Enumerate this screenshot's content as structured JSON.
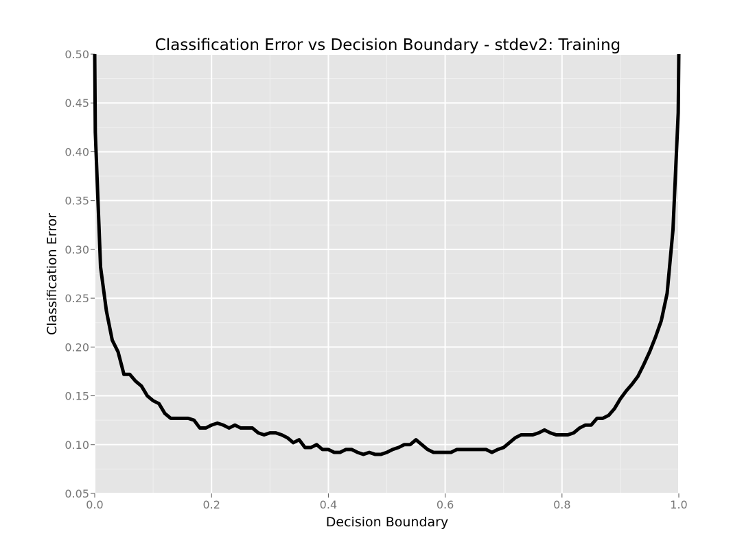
{
  "colors": {
    "panel_background": "#e5e5e5",
    "major_grid": "#ffffff",
    "minor_grid": "#f0f0f0",
    "line": "#000000",
    "tick_label": "#777777",
    "text": "#000000"
  },
  "chart_data": {
    "type": "line",
    "title": "Classification Error vs Decision Boundary - stdev2: Training",
    "xlabel": "Decision Boundary",
    "ylabel": "Classification Error",
    "xlim": [
      0.0,
      1.0
    ],
    "ylim": [
      0.05,
      0.5
    ],
    "grid": true,
    "x_ticks": [
      0.0,
      0.2,
      0.4,
      0.6,
      0.8,
      1.0
    ],
    "x_tick_labels": [
      "0.0",
      "0.2",
      "0.4",
      "0.6",
      "0.8",
      "1.0"
    ],
    "y_ticks": [
      0.05,
      0.1,
      0.15,
      0.2,
      0.25,
      0.3,
      0.35,
      0.4,
      0.45,
      0.5
    ],
    "y_tick_labels": [
      "0.05",
      "0.10",
      "0.15",
      "0.20",
      "0.25",
      "0.30",
      "0.35",
      "0.40",
      "0.45",
      "0.50"
    ],
    "series": [
      {
        "x": [
          0.0,
          0.001,
          0.01,
          0.02,
          0.03,
          0.04,
          0.05,
          0.06,
          0.07,
          0.08,
          0.09,
          0.1,
          0.11,
          0.12,
          0.13,
          0.14,
          0.15,
          0.16,
          0.17,
          0.18,
          0.19,
          0.2,
          0.21,
          0.22,
          0.23,
          0.24,
          0.25,
          0.26,
          0.27,
          0.28,
          0.29,
          0.3,
          0.31,
          0.32,
          0.33,
          0.34,
          0.35,
          0.36,
          0.37,
          0.38,
          0.39,
          0.4,
          0.41,
          0.42,
          0.43,
          0.44,
          0.45,
          0.46,
          0.47,
          0.48,
          0.49,
          0.5,
          0.51,
          0.52,
          0.53,
          0.54,
          0.55,
          0.56,
          0.57,
          0.58,
          0.59,
          0.6,
          0.61,
          0.62,
          0.63,
          0.64,
          0.65,
          0.66,
          0.67,
          0.68,
          0.69,
          0.7,
          0.71,
          0.72,
          0.73,
          0.74,
          0.75,
          0.76,
          0.77,
          0.78,
          0.79,
          0.8,
          0.81,
          0.82,
          0.83,
          0.84,
          0.85,
          0.86,
          0.87,
          0.88,
          0.89,
          0.9,
          0.91,
          0.92,
          0.93,
          0.94,
          0.95,
          0.96,
          0.97,
          0.98,
          0.99,
          0.999,
          1.0
        ],
        "y": [
          0.5,
          0.42,
          0.282,
          0.237,
          0.207,
          0.195,
          0.172,
          0.172,
          0.165,
          0.16,
          0.15,
          0.145,
          0.142,
          0.132,
          0.127,
          0.127,
          0.127,
          0.127,
          0.125,
          0.117,
          0.117,
          0.12,
          0.122,
          0.12,
          0.117,
          0.12,
          0.117,
          0.117,
          0.117,
          0.112,
          0.11,
          0.112,
          0.112,
          0.11,
          0.107,
          0.102,
          0.105,
          0.097,
          0.097,
          0.1,
          0.095,
          0.095,
          0.092,
          0.092,
          0.095,
          0.095,
          0.092,
          0.09,
          0.092,
          0.09,
          0.09,
          0.092,
          0.095,
          0.097,
          0.1,
          0.1,
          0.105,
          0.1,
          0.095,
          0.092,
          0.092,
          0.092,
          0.092,
          0.095,
          0.095,
          0.095,
          0.095,
          0.095,
          0.095,
          0.092,
          0.095,
          0.097,
          0.102,
          0.107,
          0.11,
          0.11,
          0.11,
          0.112,
          0.115,
          0.112,
          0.11,
          0.11,
          0.11,
          0.112,
          0.117,
          0.12,
          0.12,
          0.127,
          0.127,
          0.13,
          0.137,
          0.147,
          0.155,
          0.162,
          0.17,
          0.182,
          0.195,
          0.21,
          0.227,
          0.255,
          0.32,
          0.44,
          0.5
        ]
      }
    ]
  }
}
